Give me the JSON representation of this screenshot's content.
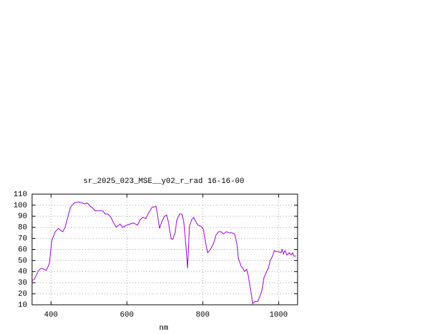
{
  "chart_data": {
    "type": "line",
    "title": "sr_2025_023_MSE__y02_r_rad 16-16-00",
    "x_label": "nm",
    "xlim": [
      350,
      1050
    ],
    "xticks": [
      400,
      600,
      800,
      1000
    ],
    "ylim": [
      10,
      110
    ],
    "yticks": [
      10,
      20,
      30,
      40,
      50,
      60,
      70,
      80,
      90,
      100,
      110
    ],
    "grid": true,
    "x": [
      350,
      356,
      367,
      374,
      382,
      387,
      393,
      396,
      402,
      411,
      420,
      426,
      431,
      437,
      444,
      451,
      461,
      472,
      481,
      484,
      488,
      494,
      499,
      503,
      508,
      516,
      536,
      543,
      550,
      558,
      565,
      572,
      582,
      589,
      600,
      617,
      628,
      635,
      642,
      650,
      659,
      666,
      677,
      681,
      686,
      692,
      699,
      705,
      710,
      716,
      721,
      727,
      732,
      739,
      745,
      750,
      756,
      760,
      765,
      771,
      776,
      782,
      787,
      795,
      802,
      807,
      813,
      820,
      828,
      835,
      842,
      848,
      855,
      862,
      870,
      877,
      884,
      890,
      894,
      901,
      906,
      910,
      916,
      919,
      925,
      932,
      938,
      945,
      950,
      956,
      961,
      967,
      973,
      978,
      984,
      989,
      993,
      1000,
      1006,
      1009,
      1013,
      1017,
      1022,
      1028,
      1033,
      1037,
      1040,
      1046
    ],
    "series": [
      {
        "color": "#9400d3",
        "values": [
          32,
          33,
          41,
          43,
          42,
          41,
          45,
          48,
          68,
          76,
          79,
          77,
          76,
          80,
          89,
          98,
          102,
          103,
          102,
          102,
          101,
          102,
          101,
          99,
          98,
          95,
          95,
          92,
          92,
          89,
          84,
          80,
          83,
          80,
          82,
          84,
          82,
          87,
          89,
          88,
          94,
          98,
          99,
          91,
          79,
          85,
          90,
          91,
          84,
          70,
          69,
          75,
          87,
          92,
          92,
          85,
          62,
          43,
          81,
          87,
          89,
          85,
          82,
          81,
          78,
          67,
          57,
          60,
          65,
          73,
          76,
          76,
          74,
          76,
          75,
          75,
          74,
          65,
          52,
          45,
          43,
          40,
          42,
          38,
          26,
          11,
          13,
          13,
          17,
          23,
          34,
          39,
          43,
          50,
          54,
          59,
          58,
          58,
          57,
          60,
          56,
          59,
          55,
          57,
          55,
          57,
          54,
          54
        ]
      }
    ]
  }
}
